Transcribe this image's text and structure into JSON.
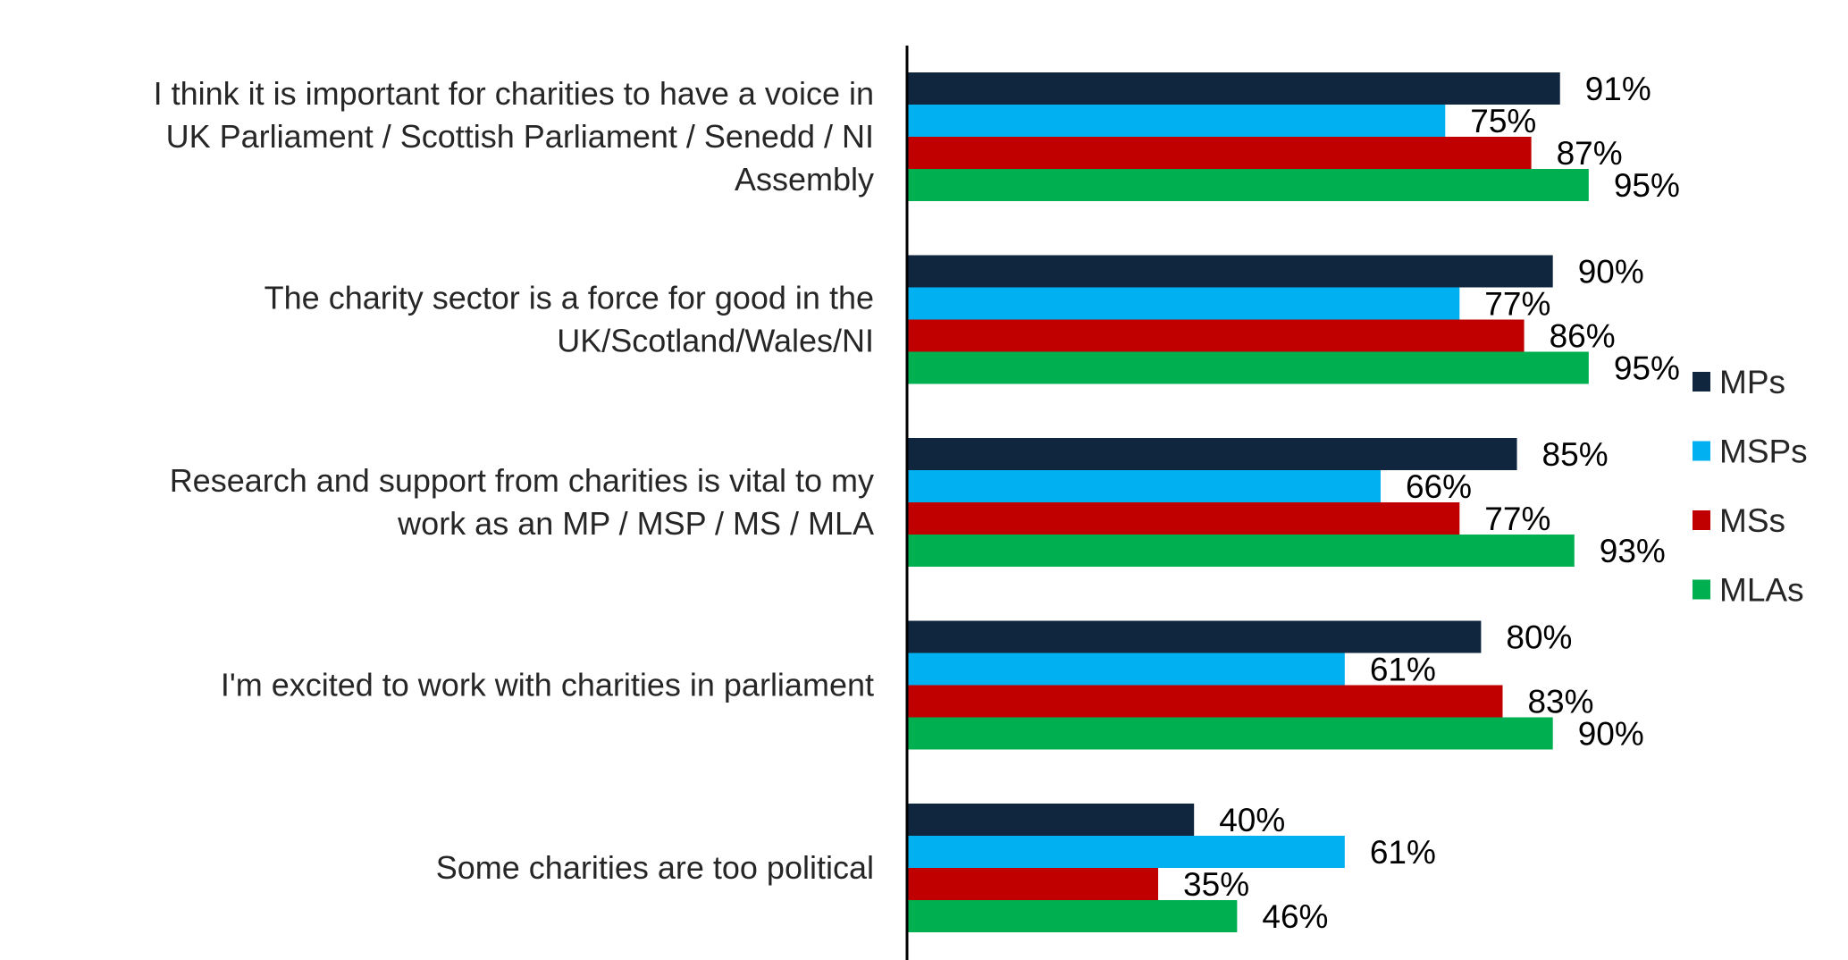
{
  "chart_data": {
    "type": "bar",
    "orientation": "horizontal",
    "categories": [
      [
        "I think it is important for charities to have a voice in",
        "UK Parliament / Scottish Parliament / Senedd / NI",
        "Assembly"
      ],
      [
        "The charity sector is a force for good in the",
        "UK/Scotland/Wales/NI"
      ],
      [
        "Research and support from charities is vital to my",
        "work as an MP / MSP / MS / MLA"
      ],
      [
        "I'm excited to work with charities in parliament"
      ],
      [
        "Some charities are too political"
      ]
    ],
    "series": [
      {
        "name": "MPs",
        "color": "#10263f",
        "values": [
          91,
          90,
          85,
          80,
          40
        ]
      },
      {
        "name": "MSPs",
        "color": "#00b0f0",
        "values": [
          75,
          77,
          66,
          61,
          61
        ]
      },
      {
        "name": "MSs",
        "color": "#c00000",
        "values": [
          87,
          86,
          77,
          83,
          35
        ]
      },
      {
        "name": "MLAs",
        "color": "#00b050",
        "values": [
          95,
          95,
          93,
          90,
          46
        ]
      }
    ],
    "value_suffix": "%",
    "xlim": [
      0,
      100
    ],
    "grid": false,
    "legend_position": "right"
  }
}
